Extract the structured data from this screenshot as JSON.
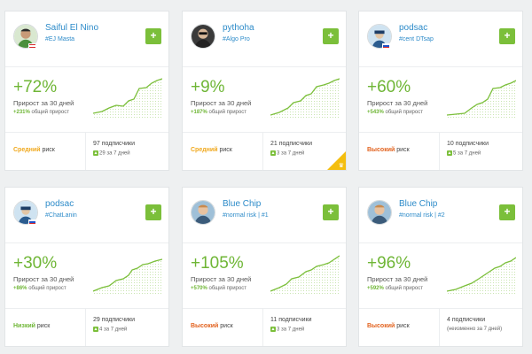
{
  "cards": [
    {
      "name": "Saiful El Nino",
      "tag": "#EJ Masta",
      "pct": "+72%",
      "pct_label": "Прирост за 30 дней",
      "total_value": "+231%",
      "total_label": "общий прирост",
      "risk_word": "Средний",
      "risk_rest": "риск",
      "risk_color": "#f0a81c",
      "subs": "97 подписчики",
      "week": "29 за 7 дней",
      "flag": "malaysia",
      "avatar": "green-shirt",
      "corner": false
    },
    {
      "name": "pythoha",
      "tag": "#Algo Pro",
      "pct": "+9%",
      "pct_label": "Прирост за 30 дней",
      "total_value": "+187%",
      "total_label": "общий прирост",
      "risk_word": "Средний",
      "risk_rest": "риск",
      "risk_color": "#f0a81c",
      "subs": "21 подписчики",
      "week": "3 за 7 дней",
      "flag": "none",
      "avatar": "dark",
      "corner": true
    },
    {
      "name": "podsac",
      "tag": "#cent DTsap",
      "pct": "+60%",
      "pct_label": "Прирост за 30 дней",
      "total_value": "+543%",
      "total_label": "общий прирост",
      "risk_word": "Высокий",
      "risk_rest": "риск",
      "risk_color": "#e2621e",
      "subs": "10 подписчики",
      "week": "5 за 7 дней",
      "flag": "russia",
      "avatar": "gear",
      "corner": false
    },
    {
      "name": "podsac",
      "tag": "#ChatLanin",
      "pct": "+30%",
      "pct_label": "Прирост за 30 дней",
      "total_value": "+86%",
      "total_label": "общий прирост",
      "risk_word": "Низкий",
      "risk_rest": "риск",
      "risk_color": "#6fb636",
      "subs": "29 подписчики",
      "week": "4 за 7 дней",
      "flag": "russia",
      "avatar": "gear",
      "corner": false
    },
    {
      "name": "Blue Chip",
      "tag": "#normal risk | #1",
      "pct": "+105%",
      "pct_label": "Прирост за 30 дней",
      "total_value": "+570%",
      "total_label": "общий прирост",
      "risk_word": "Высокий",
      "risk_rest": "риск",
      "risk_color": "#e2621e",
      "subs": "11 подписчики",
      "week": "3 за 7 дней",
      "flag": "none",
      "avatar": "man",
      "corner": false
    },
    {
      "name": "Blue Chip",
      "tag": "#normal risk | #2",
      "pct": "+96%",
      "pct_label": "Прирост за 30 дней",
      "total_value": "+592%",
      "total_label": "общий прирост",
      "risk_word": "Высокий",
      "risk_rest": "риск",
      "risk_color": "#e2621e",
      "subs": "4 подписчики",
      "week": "(неизменно за 7 дней)",
      "flag": "none",
      "avatar": "man",
      "corner": false
    }
  ],
  "follow_label": "+",
  "week_arrow": "▲",
  "colors": {
    "accent_green": "#7bbf3a",
    "link_blue": "#2d8bc9"
  }
}
